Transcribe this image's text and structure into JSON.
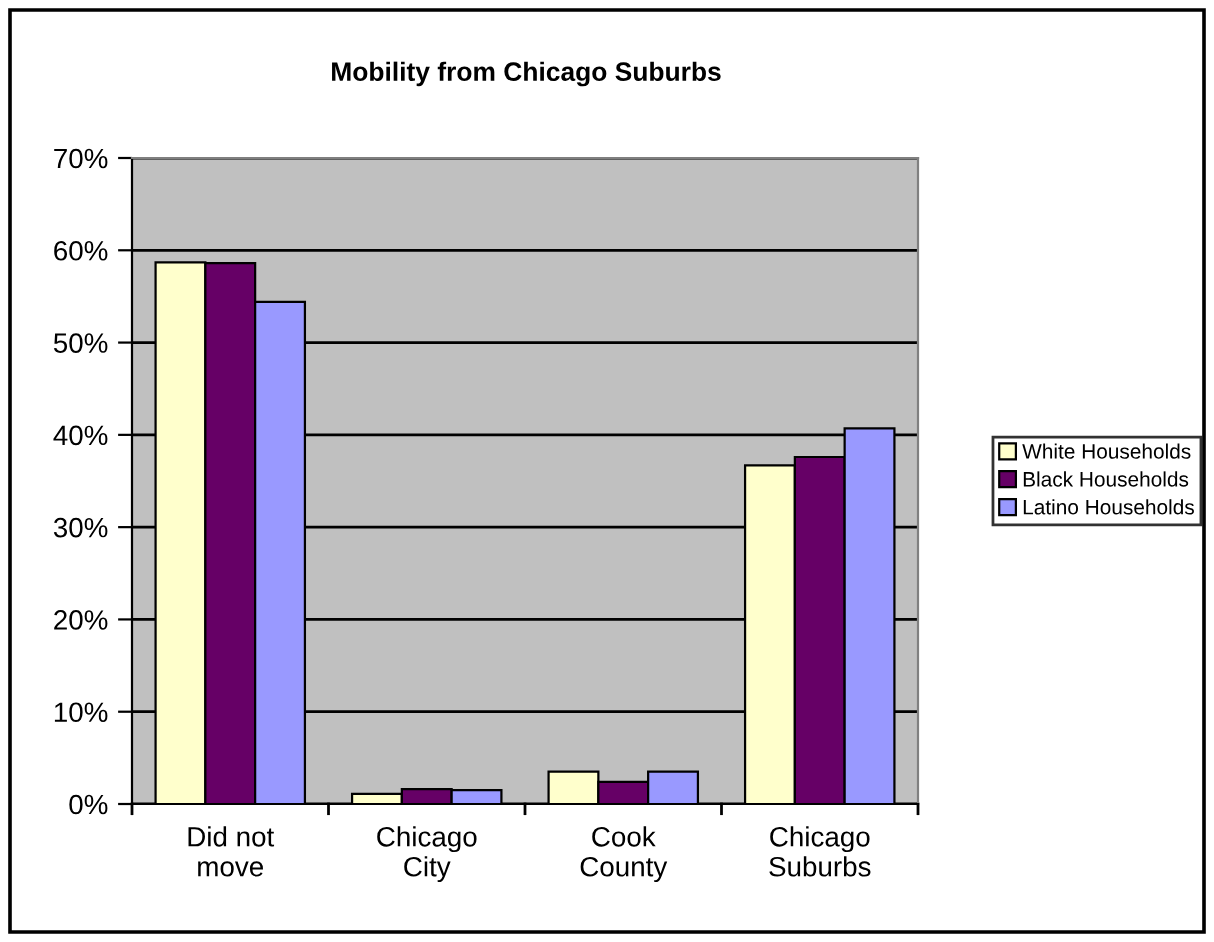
{
  "chart_data": {
    "type": "bar",
    "title": "Mobility from Chicago Suburbs",
    "categories": [
      "Did not\nmove",
      "Chicago\nCity",
      "Cook\nCounty",
      "Chicago\nSuburbs"
    ],
    "series": [
      {
        "name": "White Households",
        "color": "#ffffcc",
        "values": [
          58.7,
          1.1,
          3.5,
          36.7
        ]
      },
      {
        "name": "Black Households",
        "color": "#660066",
        "values": [
          58.6,
          1.6,
          2.4,
          37.6
        ]
      },
      {
        "name": "Latino Households",
        "color": "#9999ff",
        "values": [
          54.4,
          1.5,
          3.5,
          40.7
        ]
      }
    ],
    "ylim": [
      0,
      70
    ],
    "yticks": [
      {
        "value": 0,
        "label": "0%"
      },
      {
        "value": 10,
        "label": "10%"
      },
      {
        "value": 20,
        "label": "20%"
      },
      {
        "value": 30,
        "label": "30%"
      },
      {
        "value": 40,
        "label": "40%"
      },
      {
        "value": 50,
        "label": "50%"
      },
      {
        "value": 60,
        "label": "60%"
      },
      {
        "value": 70,
        "label": "70%"
      }
    ],
    "grid": "y",
    "legend": "right"
  }
}
